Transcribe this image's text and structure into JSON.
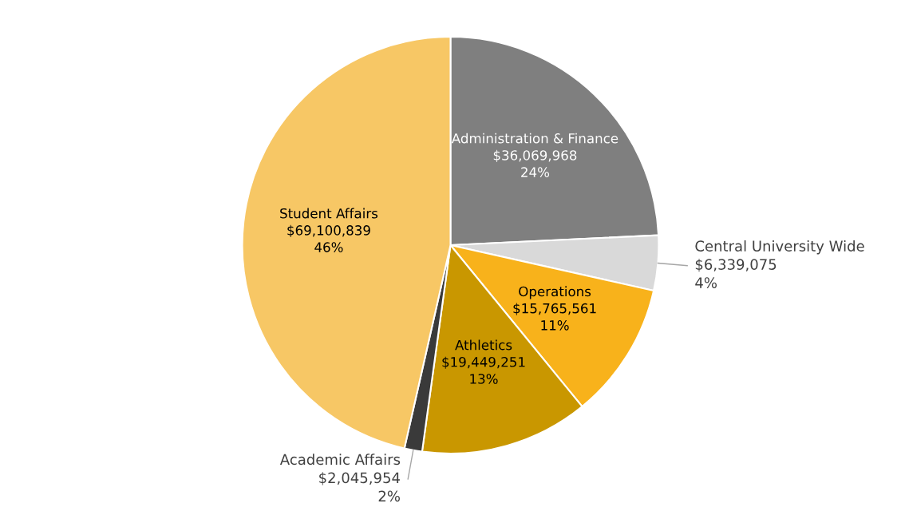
{
  "chart_data": {
    "type": "pie",
    "categories": [
      "Administration & Finance",
      "Central University Wide",
      "Operations",
      "Athletics",
      "Academic Affairs",
      "Student Affairs"
    ],
    "values": [
      36069968,
      6339075,
      15765561,
      19449251,
      2045954,
      69100839
    ],
    "colors": [
      "#7f7f7f",
      "#d9d9d9",
      "#f8b21b",
      "#c99700",
      "#3a3a3a",
      "#f7c765"
    ],
    "value_labels": [
      "$36,069,968\n24%",
      "$6,339,075\n4%",
      "$15,765,561\n11%",
      "$19,449,251\n13%",
      "$2,045,954\n2%",
      "$69,100,839\n46%"
    ],
    "legend": false
  }
}
